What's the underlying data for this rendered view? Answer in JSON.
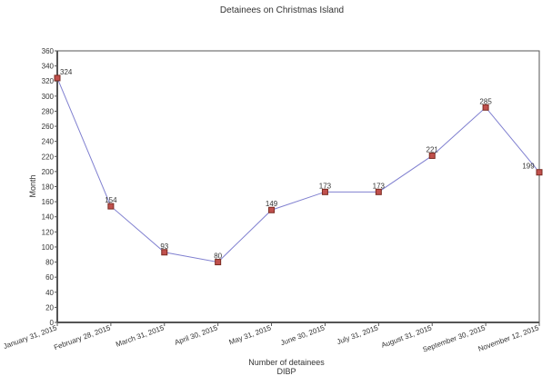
{
  "chart_data": {
    "type": "line",
    "title": "Detainees on Christmas Island",
    "xlabel": "Number of detainees",
    "xsublabel": "DIBP",
    "ylabel": "Month",
    "ylim": [
      0,
      360
    ],
    "ytick_step": 20,
    "categories": [
      "January 31, 2015",
      "February 28, 2015",
      "March 31, 2015",
      "April 30, 2015",
      "May 31, 2015",
      "June 30, 2015",
      "July 31, 2015",
      "August 31, 2015",
      "September 30, 2015",
      "November 12, 2015"
    ],
    "values": [
      324,
      154,
      93,
      80,
      149,
      173,
      173,
      221,
      285,
      199
    ],
    "line_color": "#8080d0",
    "marker_color": "#c0504d",
    "grid": false
  }
}
